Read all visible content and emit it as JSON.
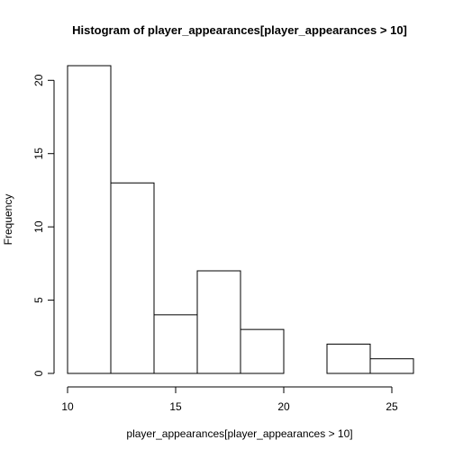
{
  "chart_data": {
    "type": "bar",
    "title": "Histogram of player_appearances[player_appearances > 10]",
    "xlabel": "player_appearances[player_appearances > 10]",
    "ylabel": "Frequency",
    "bins": [
      {
        "from": 10,
        "to": 12,
        "count": 21
      },
      {
        "from": 12,
        "to": 14,
        "count": 13
      },
      {
        "from": 14,
        "to": 16,
        "count": 4
      },
      {
        "from": 16,
        "to": 18,
        "count": 7
      },
      {
        "from": 18,
        "to": 20,
        "count": 3
      },
      {
        "from": 20,
        "to": 22,
        "count": 0
      },
      {
        "from": 22,
        "to": 24,
        "count": 2
      },
      {
        "from": 24,
        "to": 26,
        "count": 1
      }
    ],
    "xlim": [
      10,
      26
    ],
    "ylim": [
      0,
      21
    ],
    "x_ticks": [
      10,
      15,
      20,
      25
    ],
    "y_ticks": [
      0,
      5,
      10,
      15,
      20
    ],
    "bar_fill": "#ffffff",
    "bar_stroke": "#000000",
    "grid": false,
    "legend": "none"
  }
}
